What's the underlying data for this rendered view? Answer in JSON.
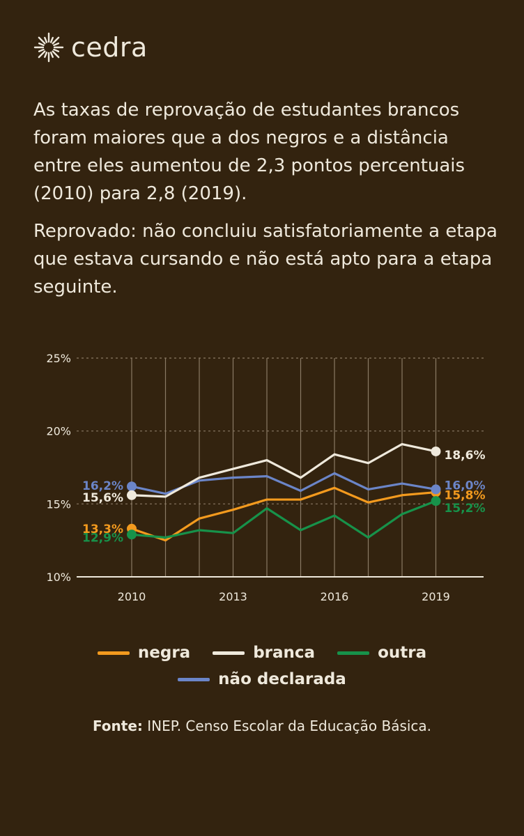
{
  "brand": {
    "name": "cedra",
    "icon": "sun-burst-icon"
  },
  "headline": "As taxas de reprovação de estudantes brancos foram maiores que a dos negros e a distância entre eles aumentou de 2,3 pontos percentuais (2010) para 2,8 (2019).",
  "definition": "Reprovado: não concluiu satisfatoriamente a etapa que estava cursando e não está apto para a etapa seguinte.",
  "source": {
    "label": "Fonte:",
    "text": "INEP. Censo Escolar da Educação Básica."
  },
  "colors": {
    "background": "#33230f",
    "text": "#efe9dc",
    "grid": "#8a7a65"
  },
  "chart_data": {
    "type": "line",
    "x": [
      2010,
      2011,
      2012,
      2013,
      2014,
      2015,
      2016,
      2017,
      2018,
      2019
    ],
    "x_ticks": [
      "2010",
      "2013",
      "2016",
      "2019"
    ],
    "y_ticks": [
      "10%",
      "15%",
      "20%",
      "25%"
    ],
    "ylim": [
      10,
      25
    ],
    "grid": true,
    "legend_position": "bottom",
    "series": [
      {
        "name": "negra",
        "color": "#f39a1e",
        "values": [
          13.3,
          12.5,
          14.0,
          14.6,
          15.3,
          15.3,
          16.1,
          15.1,
          15.6,
          15.8
        ],
        "start_label": "13,3%",
        "end_label": "15,8%"
      },
      {
        "name": "branca",
        "color": "#efe9dc",
        "values": [
          15.6,
          15.5,
          16.8,
          17.4,
          18.0,
          16.8,
          18.4,
          17.8,
          19.1,
          18.6
        ],
        "start_label": "15,6%",
        "end_label": "18,6%"
      },
      {
        "name": "outra",
        "color": "#17924a",
        "values": [
          12.9,
          12.7,
          13.2,
          13.0,
          14.7,
          13.2,
          14.2,
          12.7,
          14.3,
          15.2
        ],
        "start_label": "12,9%",
        "end_label": "15,2%"
      },
      {
        "name": "não declarada",
        "color": "#6b85c8",
        "values": [
          16.2,
          15.7,
          16.6,
          16.8,
          16.9,
          15.9,
          17.1,
          16.0,
          16.4,
          16.0
        ],
        "start_label": "16,2%",
        "end_label": "16,0%"
      }
    ]
  }
}
